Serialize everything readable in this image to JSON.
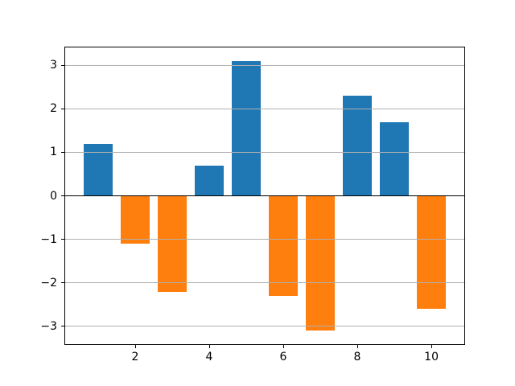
{
  "figure": {
    "background": "#ffffff",
    "border_color": "#000000"
  },
  "chart_data": {
    "type": "bar",
    "title": "",
    "xlabel": "",
    "ylabel": "",
    "x": [
      1,
      2,
      3,
      4,
      5,
      6,
      7,
      8,
      9,
      10
    ],
    "values": [
      1.2,
      -1.1,
      -2.2,
      0.7,
      3.1,
      -2.3,
      -3.1,
      2.3,
      1.7,
      -2.6
    ],
    "bar_width": 0.8,
    "positive_color": "#1f77b4",
    "negative_color": "#ff7f0e",
    "xlim": [
      0.11,
      10.89
    ],
    "ylim": [
      -3.41,
      3.41
    ],
    "xticks": [
      2,
      4,
      6,
      8,
      10
    ],
    "xtick_labels": [
      "2",
      "4",
      "6",
      "8",
      "10"
    ],
    "yticks": [
      -3,
      -2,
      -1,
      0,
      1,
      2,
      3
    ],
    "ytick_labels": [
      "−3",
      "−2",
      "−1",
      "0",
      "1",
      "2",
      "3"
    ],
    "grid": "y",
    "grid_color": "#b0b0b0",
    "grid_above_bars": true,
    "zero_line_color": "#000000",
    "zero_line_width": 1.5,
    "legend": null
  }
}
